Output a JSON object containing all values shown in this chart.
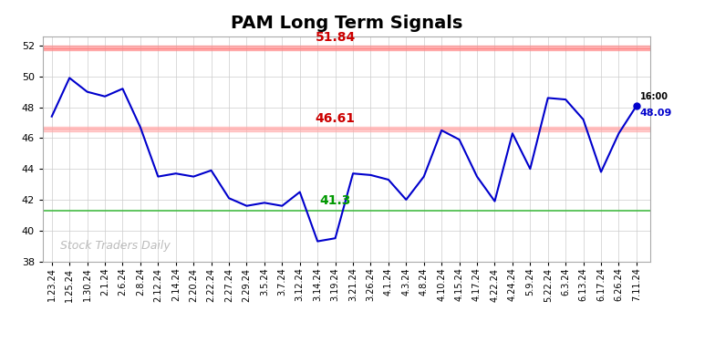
{
  "title": "PAM Long Term Signals",
  "x_labels": [
    "1.23.24",
    "1.25.24",
    "1.30.24",
    "2.1.24",
    "2.6.24",
    "2.8.24",
    "2.12.24",
    "2.14.24",
    "2.20.24",
    "2.22.24",
    "2.27.24",
    "2.29.24",
    "3.5.24",
    "3.7.24",
    "3.12.24",
    "3.14.24",
    "3.19.24",
    "3.21.24",
    "3.26.24",
    "4.1.24",
    "4.3.24",
    "4.8.24",
    "4.10.24",
    "4.15.24",
    "4.17.24",
    "4.22.24",
    "4.24.24",
    "5.9.24",
    "5.22.24",
    "6.3.24",
    "6.13.24",
    "6.17.24",
    "6.26.24",
    "7.11.24"
  ],
  "y_values": [
    47.4,
    49.9,
    49.0,
    48.7,
    49.2,
    46.7,
    43.5,
    43.7,
    43.5,
    43.9,
    42.1,
    41.6,
    41.8,
    41.6,
    42.5,
    39.3,
    39.5,
    43.7,
    43.6,
    43.3,
    42.0,
    43.5,
    46.5,
    45.9,
    43.5,
    41.9,
    46.3,
    44.0,
    48.6,
    48.5,
    47.2,
    43.8,
    46.3,
    48.09
  ],
  "line_color": "#0000cc",
  "last_label": "16:00",
  "last_value": "48.09",
  "last_value_color": "#0000cc",
  "hline_upper": 51.84,
  "hline_upper_color": "#ff8888",
  "hline_mid": 46.61,
  "hline_mid_color": "#ffaaaa",
  "hline_lower": 41.3,
  "hline_lower_color": "#44bb44",
  "label_upper_color": "#cc0000",
  "label_mid_color": "#cc0000",
  "label_lower_color": "#009900",
  "watermark": "Stock Traders Daily",
  "watermark_color": "#bbbbbb",
  "background_color": "#ffffff",
  "grid_color": "#cccccc",
  "ylim_min": 38,
  "ylim_max": 52.6,
  "yticks": [
    38,
    40,
    42,
    44,
    46,
    48,
    50,
    52
  ],
  "title_fontsize": 14,
  "axis_fontsize": 7
}
